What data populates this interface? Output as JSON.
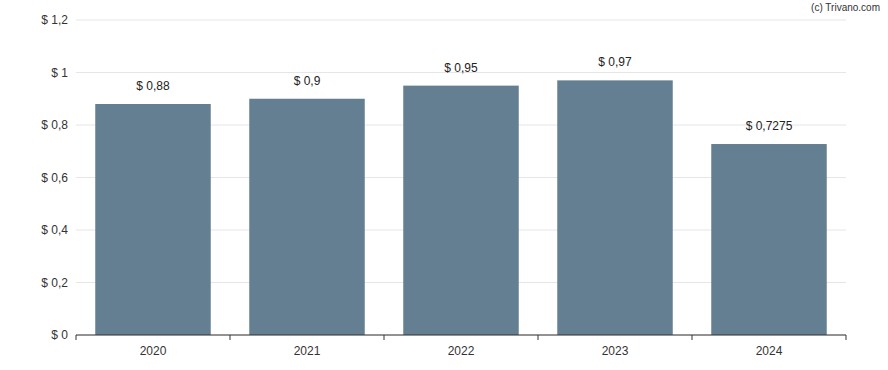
{
  "chart_data": {
    "type": "bar",
    "categories": [
      "2020",
      "2021",
      "2022",
      "2023",
      "2024"
    ],
    "values": [
      0.88,
      0.9,
      0.95,
      0.97,
      0.7275
    ],
    "value_labels": [
      "$ 0,88",
      "$ 0,9",
      "$ 0,95",
      "$ 0,97",
      "$ 0,7275"
    ],
    "data_labels": true,
    "color": "#647f92",
    "ylim": [
      0,
      1.2
    ],
    "yticks": [
      {
        "value": 0,
        "label": "$ 0"
      },
      {
        "value": 0.2,
        "label": "$ 0,2"
      },
      {
        "value": 0.4,
        "label": "$ 0,4"
      },
      {
        "value": 0.6,
        "label": "$ 0,6"
      },
      {
        "value": 0.8,
        "label": "$ 0,8"
      },
      {
        "value": 1,
        "label": "$ 1"
      },
      {
        "value": 1.2,
        "label": "$ 1,2"
      }
    ],
    "grid": true,
    "annotations": [
      "(c) Trivano.com"
    ]
  }
}
